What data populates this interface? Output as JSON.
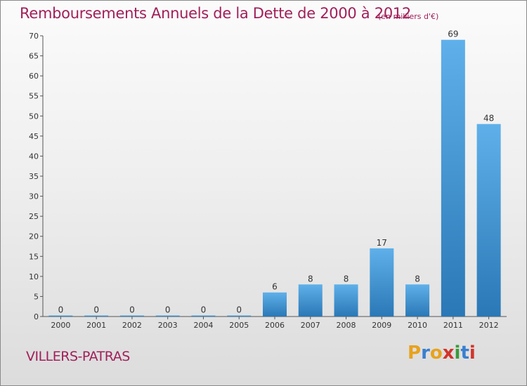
{
  "title": "Remboursements Annuels de la Dette de 2000 à 2012",
  "subtitle": "(en milliers d'€)",
  "commune": "VILLERS-PATRAS",
  "logo": {
    "letters": [
      "P",
      "r",
      "o",
      "x",
      "i",
      "t",
      "i"
    ],
    "colors": [
      "#e8a21e",
      "#3a7fd0",
      "#e8a21e",
      "#d2342a",
      "#3a9a3a",
      "#3a7fd0",
      "#d2342a"
    ]
  },
  "colors": {
    "accent": "#a0205a",
    "bar_light": "#5aabe8",
    "bar_dark": "#2a78b6"
  },
  "chart_data": {
    "type": "bar",
    "categories": [
      "2000",
      "2001",
      "2002",
      "2003",
      "2004",
      "2005",
      "2006",
      "2007",
      "2008",
      "2009",
      "2010",
      "2011",
      "2012"
    ],
    "values": [
      0,
      0,
      0,
      0,
      0,
      0,
      6,
      8,
      8,
      17,
      8,
      69,
      48
    ],
    "ylim": [
      0,
      70
    ],
    "yticks": [
      0,
      5,
      10,
      15,
      20,
      25,
      30,
      35,
      40,
      45,
      50,
      55,
      60,
      65,
      70
    ],
    "title": "Remboursements Annuels de la Dette de 2000 à 2012",
    "grid": false
  }
}
